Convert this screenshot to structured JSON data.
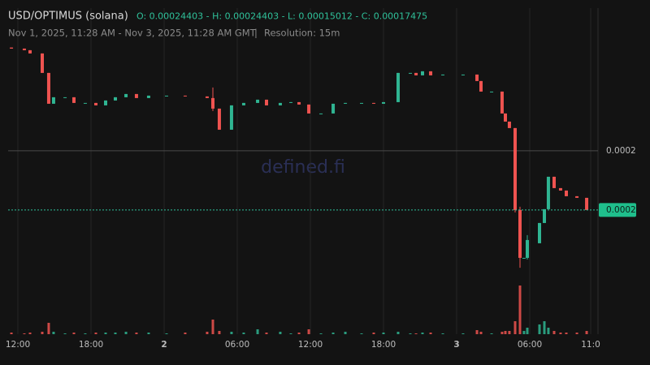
{
  "header": {
    "title": "USD/OPTIMUS (solana)",
    "ohlc": "O: 0.00024403 - H: 0.00024403 - L: 0.00015012 - C: 0.00017475",
    "range": "Nov 1, 2025, 11:28 AM - Nov 3, 2025, 11:28 AM GMT",
    "separator": "|",
    "resolution": "Resolution: 15m"
  },
  "watermark": "defined.fi",
  "chart_data": {
    "type": "candlestick",
    "up_color": "#2fb592",
    "down_color": "#ef5350",
    "xlim": [
      11.2,
      59.6
    ],
    "ylim": [
      0.0001218,
      0.0002643
    ],
    "xticks": [
      {
        "value": 12,
        "label": "12:00"
      },
      {
        "value": 18,
        "label": "18:00"
      },
      {
        "value": 24,
        "label": "2"
      },
      {
        "value": 30,
        "label": "06:00"
      },
      {
        "value": 36,
        "label": "12:00"
      },
      {
        "value": 42,
        "label": "18:00"
      },
      {
        "value": 48,
        "label": "3"
      },
      {
        "value": 54,
        "label": "06:00"
      },
      {
        "value": 59,
        "label": "11:0"
      }
    ],
    "yticks": [
      {
        "value": 0.0002,
        "label": "0.0002"
      }
    ],
    "last_price": {
      "value": 0.00017475,
      "label": "0.0002"
    },
    "x": [
      11.47,
      12.53,
      13.0,
      14.0,
      14.53,
      14.93,
      15.87,
      16.6,
      17.53,
      18.4,
      19.2,
      20.0,
      20.87,
      21.73,
      22.73,
      24.2,
      25.73,
      27.53,
      28.0,
      28.53,
      29.53,
      30.53,
      31.67,
      32.4,
      33.53,
      34.4,
      35.07,
      35.87,
      36.87,
      37.87,
      38.87,
      40.2,
      41.2,
      42.0,
      43.2,
      44.2,
      44.67,
      45.2,
      45.87,
      46.87,
      48.53,
      49.67,
      50.0,
      50.87,
      51.73,
      52.0,
      52.33,
      52.8,
      53.2,
      53.53,
      53.8,
      54.8,
      55.2,
      55.53,
      56.0,
      56.53,
      57.0,
      57.87,
      58.67
    ],
    "open": [
      0.00024403,
      0.00024358,
      0.00024289,
      0.00024151,
      0.00023321,
      0.00022006,
      0.00022283,
      0.00022283,
      0.00022041,
      0.00022041,
      0.00021937,
      0.00022145,
      0.00022283,
      0.00022421,
      0.00022249,
      0.00022352,
      0.00022352,
      0.00022318,
      0.00022249,
      0.00021799,
      0.00020899,
      0.00021937,
      0.00022041,
      0.00022179,
      0.00021937,
      0.00022041,
      0.00022075,
      0.00021972,
      0.00021591,
      0.00021591,
      0.00022006,
      0.00022041,
      0.00022041,
      0.00022006,
      0.00022075,
      0.00023321,
      0.00023321,
      0.00023217,
      0.0002339,
      0.00023217,
      0.00023251,
      0.00023251,
      0.00022975,
      0.00022525,
      0.00022525,
      0.00021591,
      0.00021245,
      0.00020969,
      0.00017475,
      0.00015434,
      0.00015434,
      0.00016057,
      0.00016921,
      0.0001751,
      0.00018893,
      0.00018409,
      0.00018305,
      0.00018063,
      0.00017994
    ],
    "high": [
      0.00024403,
      0.00024358,
      0.00024289,
      0.00024151,
      0.00023321,
      0.00022283,
      0.00022283,
      0.00022283,
      0.00022041,
      0.00022041,
      0.00022145,
      0.00022283,
      0.00022421,
      0.00022421,
      0.00022352,
      0.00022352,
      0.00022352,
      0.00022318,
      0.00022698,
      0.00021799,
      0.00021937,
      0.00022041,
      0.00022179,
      0.00022179,
      0.00022041,
      0.00022075,
      0.00022075,
      0.00021972,
      0.00021591,
      0.00022006,
      0.00022041,
      0.00022041,
      0.00022041,
      0.00022075,
      0.00023321,
      0.00023321,
      0.00023321,
      0.0002339,
      0.0002339,
      0.00023251,
      0.00023251,
      0.00023251,
      0.00022975,
      0.00022525,
      0.00022525,
      0.00021591,
      0.00021245,
      0.00020969,
      0.00017613,
      0.00015434,
      0.00016403,
      0.00016921,
      0.0001751,
      0.00018893,
      0.00018893,
      0.00018409,
      0.00018305,
      0.00018063,
      0.00017994
    ],
    "low": [
      0.00024358,
      0.00024289,
      0.00024151,
      0.00023321,
      0.00022006,
      0.00022006,
      0.00022283,
      0.00022041,
      0.00022041,
      0.00021937,
      0.00021937,
      0.00022145,
      0.00022283,
      0.00022249,
      0.00022249,
      0.00022352,
      0.00022318,
      0.00022249,
      0.00021695,
      0.00020899,
      0.00020899,
      0.00021937,
      0.00022041,
      0.00021937,
      0.00021937,
      0.00022041,
      0.00021972,
      0.00021591,
      0.00021591,
      0.00021591,
      0.00022006,
      0.00022041,
      0.00022006,
      0.00022006,
      0.00022075,
      0.00023321,
      0.00023217,
      0.00023217,
      0.00023217,
      0.00023217,
      0.00023251,
      0.00022975,
      0.00022525,
      0.00022525,
      0.00021591,
      0.00021245,
      0.00020969,
      0.00017371,
      0.00015012,
      0.00015434,
      0.00015365,
      0.00016057,
      0.00016921,
      0.0001751,
      0.00018409,
      0.00018305,
      0.00018063,
      0.00017994,
      0.00017475
    ],
    "close": [
      0.00024358,
      0.00024289,
      0.00024151,
      0.00023321,
      0.00022006,
      0.00022283,
      0.00022283,
      0.00022041,
      0.00022041,
      0.00021937,
      0.00022145,
      0.00022283,
      0.00022421,
      0.00022249,
      0.00022352,
      0.00022352,
      0.00022318,
      0.00022249,
      0.00021799,
      0.00020899,
      0.00021937,
      0.00022041,
      0.00022179,
      0.00021937,
      0.00022041,
      0.00022075,
      0.00021972,
      0.00021591,
      0.00021591,
      0.00022006,
      0.00022041,
      0.00022041,
      0.00022006,
      0.00022075,
      0.00023321,
      0.00023321,
      0.00023217,
      0.0002339,
      0.00023217,
      0.00023251,
      0.00023251,
      0.00022975,
      0.00022525,
      0.00022525,
      0.00021591,
      0.00021245,
      0.00020969,
      0.00017475,
      0.00015434,
      0.00015434,
      0.00016195,
      0.00016921,
      0.0001751,
      0.00018893,
      0.00018409,
      0.00018305,
      0.00018063,
      0.00017994,
      0.00017475
    ],
    "volume": [
      2,
      1,
      2,
      3,
      14,
      3,
      1,
      2,
      1,
      2,
      2,
      2,
      3,
      2,
      2,
      1,
      2,
      3,
      18,
      4,
      3,
      2,
      6,
      2,
      3,
      1,
      2,
      6,
      1,
      2,
      3,
      1,
      2,
      2,
      3,
      1,
      1,
      2,
      2,
      1,
      1,
      5,
      3,
      1,
      3,
      4,
      4,
      16,
      60,
      4,
      8,
      12,
      16,
      8,
      4,
      2,
      2,
      2,
      4
    ]
  }
}
